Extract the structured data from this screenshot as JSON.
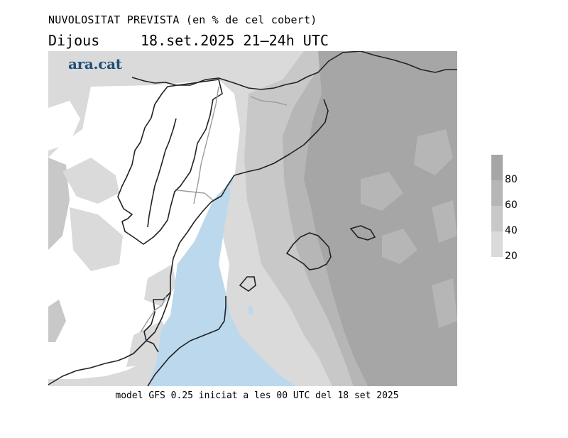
{
  "header": {
    "title": "NUVOLOSITAT PREVISTA (en % de cel cobert)",
    "day": "Dijous",
    "datetime": "18.set.2025 21–24h UTC"
  },
  "logo": {
    "text": "ara.cat"
  },
  "footer": {
    "text": "model GFS 0.25 iniciat a les 00 UTC del 18 set 2025"
  },
  "legend": {
    "ticks": [
      "80",
      "60",
      "40",
      "20"
    ],
    "colors": [
      "#a6a6a6",
      "#b6b6b6",
      "#c8c8c8",
      "#dadada"
    ]
  },
  "map": {
    "colors": {
      "sea_clear": "#bcd8ec",
      "clear_land": "#ffffff",
      "cloud_20": "#dadada",
      "cloud_40": "#c8c8c8",
      "cloud_60": "#b6b6b6",
      "cloud_80": "#a6a6a6",
      "coast": "#222222",
      "border": "#9a9a9a"
    }
  }
}
